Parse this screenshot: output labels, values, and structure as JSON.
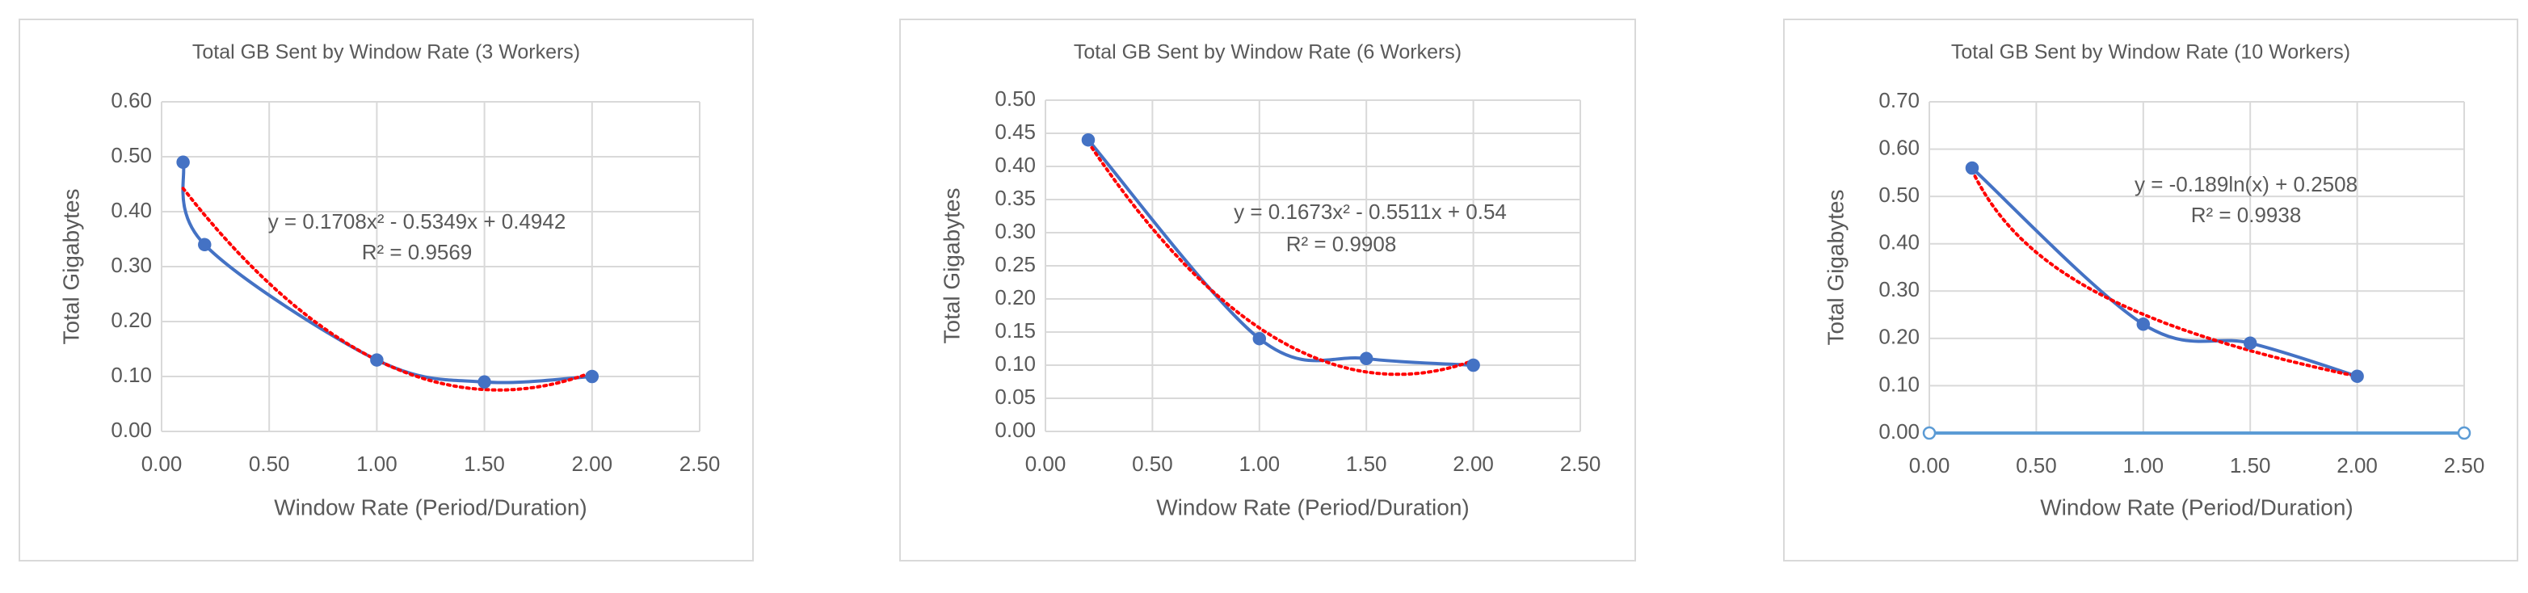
{
  "chart_data": [
    {
      "type": "line",
      "title": "Total GB Sent  by Window Rate (3 Workers)",
      "x_label": "Window Rate (Period/Duration)",
      "y_label": "Total Gigabytes",
      "series": [
        {
          "color": "#4472c4",
          "x": [
            0.1,
            0.2,
            1.0,
            1.5,
            2.0
          ],
          "values": [
            0.49,
            0.34,
            0.13,
            0.09,
            0.1
          ]
        }
      ],
      "trendline": {
        "kind": "poly",
        "color": "#ff0000",
        "equation": "y = 0.1708x² - 0.5349x + 0.4942",
        "r_squared": "R² = 0.9569"
      },
      "xlim": [
        0,
        2.5
      ],
      "xticks": [
        {
          "value": 0,
          "label": "0.00"
        },
        {
          "value": 0.5,
          "label": "0.50"
        },
        {
          "value": 1,
          "label": "1.00"
        },
        {
          "value": 1.5,
          "label": "1.50"
        },
        {
          "value": 2,
          "label": "2.00"
        },
        {
          "value": 2.5,
          "label": "2.50"
        }
      ],
      "ylim": [
        0,
        0.6
      ],
      "yticks": [
        {
          "value": 0,
          "label": "0.00"
        },
        {
          "value": 0.1,
          "label": "0.10"
        },
        {
          "value": 0.2,
          "label": "0.20"
        },
        {
          "value": 0.3,
          "label": "0.30"
        },
        {
          "value": 0.4,
          "label": "0.40"
        },
        {
          "value": 0.5,
          "label": "0.50"
        },
        {
          "value": 0.6,
          "label": "0.60"
        }
      ],
      "grid": true
    },
    {
      "type": "line",
      "title": "Total GB Sent  by Window Rate (6 Workers)",
      "x_label": "Window Rate (Period/Duration)",
      "y_label": "Total Gigabytes",
      "series": [
        {
          "color": "#4472c4",
          "x": [
            0.2,
            1.0,
            1.5,
            2.0
          ],
          "values": [
            0.44,
            0.14,
            0.11,
            0.1
          ]
        }
      ],
      "trendline": {
        "kind": "poly",
        "color": "#ff0000",
        "equation": "y = 0.1673x² - 0.5511x + 0.54",
        "r_squared": "R² = 0.9908"
      },
      "xlim": [
        0,
        2.5
      ],
      "xticks": [
        {
          "value": 0,
          "label": "0.00"
        },
        {
          "value": 0.5,
          "label": "0.50"
        },
        {
          "value": 1,
          "label": "1.00"
        },
        {
          "value": 1.5,
          "label": "1.50"
        },
        {
          "value": 2,
          "label": "2.00"
        },
        {
          "value": 2.5,
          "label": "2.50"
        }
      ],
      "ylim": [
        0,
        0.5
      ],
      "yticks": [
        {
          "value": 0,
          "label": "0.00"
        },
        {
          "value": 0.05,
          "label": "0.05"
        },
        {
          "value": 0.1,
          "label": "0.10"
        },
        {
          "value": 0.15,
          "label": "0.15"
        },
        {
          "value": 0.2,
          "label": "0.20"
        },
        {
          "value": 0.25,
          "label": "0.25"
        },
        {
          "value": 0.3,
          "label": "0.30"
        },
        {
          "value": 0.35,
          "label": "0.35"
        },
        {
          "value": 0.4,
          "label": "0.40"
        },
        {
          "value": 0.45,
          "label": "0.45"
        },
        {
          "value": 0.5,
          "label": "0.50"
        }
      ],
      "grid": true
    },
    {
      "type": "line",
      "title": "Total GB Sent  by Window Rate (10 Workers)",
      "x_label": "Window Rate (Period/Duration)",
      "y_label": "Total Gigabytes",
      "series": [
        {
          "color": "#4472c4",
          "x": [
            0.2,
            1.0,
            1.5,
            2.0
          ],
          "values": [
            0.56,
            0.23,
            0.19,
            0.12
          ]
        },
        {
          "color": "#5b9bd5",
          "x": [
            0,
            2.5
          ],
          "values": [
            0,
            0
          ],
          "hollow": true,
          "straight": true
        }
      ],
      "trendline": {
        "kind": "log",
        "color": "#ff0000",
        "equation": "y = -0.189ln(x) + 0.2508",
        "r_squared": "R² = 0.9938"
      },
      "xlim": [
        0,
        2.5
      ],
      "xticks": [
        {
          "value": 0,
          "label": "0.00"
        },
        {
          "value": 0.5,
          "label": "0.50"
        },
        {
          "value": 1,
          "label": "1.00"
        },
        {
          "value": 1.5,
          "label": "1.50"
        },
        {
          "value": 2,
          "label": "2.00"
        },
        {
          "value": 2.5,
          "label": "2.50"
        }
      ],
      "ylim": [
        0,
        0.7
      ],
      "yticks": [
        {
          "value": 0,
          "label": "0.00"
        },
        {
          "value": 0.1,
          "label": "0.10"
        },
        {
          "value": 0.2,
          "label": "0.20"
        },
        {
          "value": 0.3,
          "label": "0.30"
        },
        {
          "value": 0.4,
          "label": "0.40"
        },
        {
          "value": 0.5,
          "label": "0.50"
        },
        {
          "value": 0.6,
          "label": "0.60"
        },
        {
          "value": 0.7,
          "label": "0.70"
        }
      ],
      "grid": true
    }
  ]
}
